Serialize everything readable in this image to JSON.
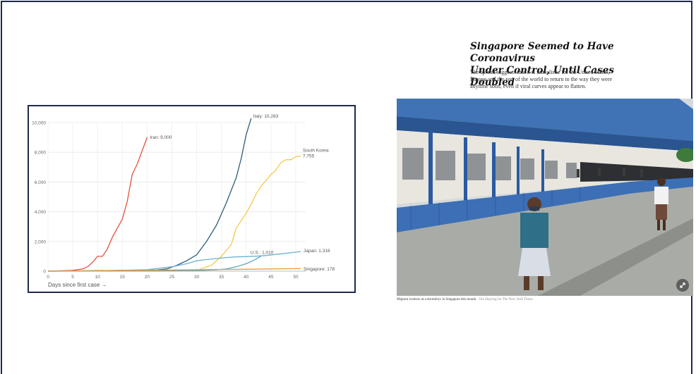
{
  "chart_data": {
    "type": "line",
    "xlabel": "Days since first case →",
    "ylabel": "",
    "xlim": [
      0,
      52
    ],
    "ylim": [
      0,
      10000
    ],
    "x_ticks": [
      0,
      5,
      10,
      15,
      20,
      25,
      30,
      35,
      40,
      45,
      50
    ],
    "y_ticks": [
      0,
      2000,
      4000,
      6000,
      8000,
      10000
    ],
    "y_tick_labels": [
      "0",
      "2,000",
      "4,000",
      "6,000",
      "8,000",
      "10,000"
    ],
    "grid": true,
    "series": [
      {
        "name": "Iran",
        "label": "Iran: 9,000",
        "color": "#e4533c",
        "x": [
          0,
          5,
          7,
          8,
          9,
          10,
          11,
          12,
          13,
          14,
          15,
          16,
          17,
          18,
          19,
          20
        ],
        "y": [
          0,
          50,
          150,
          300,
          600,
          1000,
          1000,
          1500,
          2300,
          2900,
          3500,
          4700,
          6500,
          7200,
          8100,
          9000
        ]
      },
      {
        "name": "Italy",
        "label": "Italy: 10,283",
        "color": "#2e5d78",
        "x": [
          0,
          22,
          24,
          26,
          28,
          30,
          32,
          34,
          36,
          38,
          39,
          40,
          41
        ],
        "y": [
          0,
          80,
          150,
          400,
          700,
          1100,
          2000,
          3100,
          4600,
          6300,
          7600,
          9200,
          10283
        ]
      },
      {
        "name": "South Korea",
        "label_lines": [
          "South Korea:",
          "7,755"
        ],
        "color": "#f4c84c",
        "x": [
          0,
          30,
          33,
          35,
          37,
          38,
          40,
          41,
          42,
          43,
          45,
          46,
          47,
          48,
          49,
          50,
          51
        ],
        "y": [
          0,
          50,
          400,
          1000,
          1800,
          2900,
          3900,
          4500,
          5200,
          5700,
          6500,
          6800,
          7300,
          7500,
          7500,
          7700,
          7755
        ]
      },
      {
        "name": "Japan",
        "label": "Japan: 1,316",
        "color": "#6db1d6",
        "x": [
          0,
          10,
          20,
          25,
          28,
          30,
          32,
          34,
          36,
          38,
          40,
          42,
          44,
          46,
          48,
          50,
          51
        ],
        "y": [
          0,
          20,
          100,
          300,
          500,
          700,
          780,
          850,
          920,
          960,
          980,
          1010,
          1050,
          1130,
          1200,
          1280,
          1316
        ]
      },
      {
        "name": "U.S.",
        "label": "U.S.: 1,010",
        "color": "#58aabf",
        "x": [
          0,
          20,
          25,
          30,
          34,
          36,
          38,
          40,
          41,
          42,
          43
        ],
        "y": [
          0,
          15,
          25,
          40,
          90,
          150,
          300,
          500,
          650,
          820,
          1010
        ]
      },
      {
        "name": "Singapore",
        "label": "Singapore: 178",
        "color": "#ec9a3c",
        "x": [
          0,
          10,
          20,
          30,
          40,
          45,
          50,
          51
        ],
        "y": [
          0,
          20,
          60,
          100,
          130,
          150,
          170,
          178
        ]
      }
    ]
  },
  "article": {
    "headline_line1": "Singapore Seemed to Have Coronavirus",
    "headline_line2": "Under Control, Until Cases Doubled",
    "dek_line1": "The spread suggests that it is unrealistic for the United States,",
    "dek_line2": "Europe and the rest of the world to return to the way they were",
    "dek_line3": "anytime soon, even if viral curves appear to flatten.",
    "caption": "Migrant workers at a dormitory in Singapore this month.",
    "credit": "Ore Huiying for The New York Times"
  }
}
